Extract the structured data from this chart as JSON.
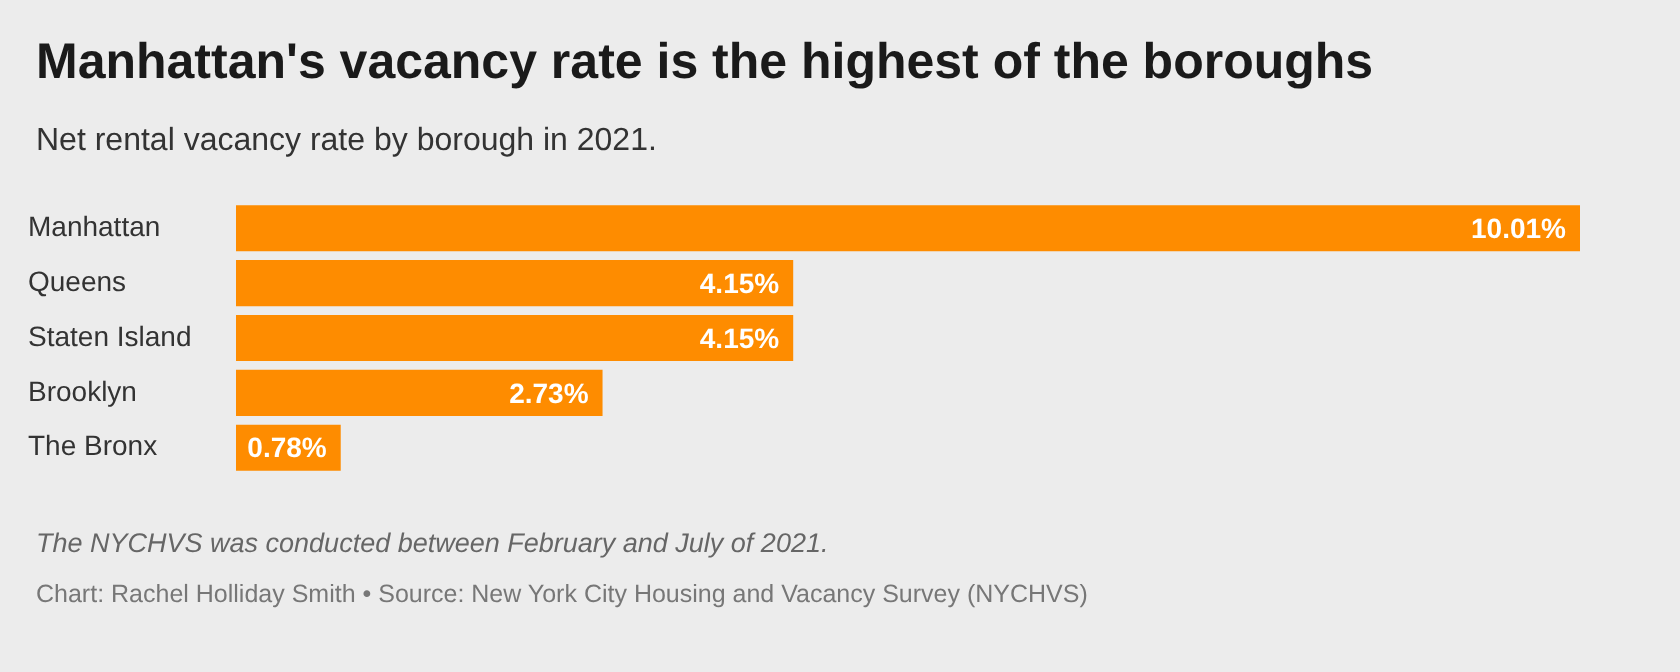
{
  "chart_data": {
    "type": "bar",
    "orientation": "horizontal",
    "title": "Manhattan's vacancy rate is the highest of the boroughs",
    "subtitle": "Net rental vacancy rate by borough in 2021.",
    "categories": [
      "Manhattan",
      "Queens",
      "Staten Island",
      "Brooklyn",
      "The Bronx"
    ],
    "values": [
      10.01,
      4.15,
      4.15,
      2.73,
      0.78
    ],
    "value_labels": [
      "10.01%",
      "4.15%",
      "4.15%",
      "2.73%",
      "0.78%"
    ],
    "color": "#fe8c00",
    "annotations": [
      "The NYCHVS was conducted between February and July of 2021.",
      "Chart: Rachel Holliday Smith • Source: New York City Housing and Vacancy Survey (NYCHVS)"
    ]
  }
}
